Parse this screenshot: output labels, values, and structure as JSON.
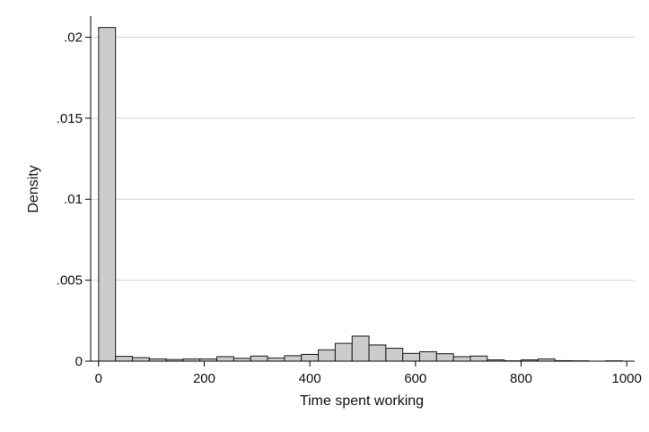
{
  "chart_data": {
    "type": "bar",
    "title": "",
    "xlabel": "Time spent working",
    "ylabel": "Density",
    "xlim": [
      -15,
      1015
    ],
    "ylim": [
      0,
      0.0213
    ],
    "grid": true,
    "bin_width": 32,
    "x_ticks": [
      {
        "value": 0,
        "label": "0"
      },
      {
        "value": 200,
        "label": "200"
      },
      {
        "value": 400,
        "label": "400"
      },
      {
        "value": 600,
        "label": "600"
      },
      {
        "value": 800,
        "label": "800"
      },
      {
        "value": 1000,
        "label": "1000"
      }
    ],
    "y_ticks": [
      {
        "value": 0,
        "label": "0"
      },
      {
        "value": 0.005,
        "label": ".005"
      },
      {
        "value": 0.01,
        "label": ".01"
      },
      {
        "value": 0.015,
        "label": ".015"
      },
      {
        "value": 0.02,
        "label": ".02"
      }
    ],
    "bins": [
      {
        "x": 0,
        "value": 0.0206
      },
      {
        "x": 32,
        "value": 0.0003
      },
      {
        "x": 64,
        "value": 0.00022
      },
      {
        "x": 96,
        "value": 0.00014
      },
      {
        "x": 128,
        "value": 0.0001
      },
      {
        "x": 160,
        "value": 0.00014
      },
      {
        "x": 192,
        "value": 0.00014
      },
      {
        "x": 224,
        "value": 0.00028
      },
      {
        "x": 256,
        "value": 0.00018
      },
      {
        "x": 288,
        "value": 0.00032
      },
      {
        "x": 320,
        "value": 0.0002
      },
      {
        "x": 352,
        "value": 0.00034
      },
      {
        "x": 384,
        "value": 0.00042
      },
      {
        "x": 416,
        "value": 0.0007
      },
      {
        "x": 448,
        "value": 0.0011
      },
      {
        "x": 480,
        "value": 0.00155
      },
      {
        "x": 512,
        "value": 0.001
      },
      {
        "x": 544,
        "value": 0.0008
      },
      {
        "x": 576,
        "value": 0.00048
      },
      {
        "x": 608,
        "value": 0.00058
      },
      {
        "x": 640,
        "value": 0.00046
      },
      {
        "x": 672,
        "value": 0.00028
      },
      {
        "x": 704,
        "value": 0.00032
      },
      {
        "x": 736,
        "value": 8e-05
      },
      {
        "x": 768,
        "value": 2e-05
      },
      {
        "x": 800,
        "value": 8e-05
      },
      {
        "x": 832,
        "value": 0.00014
      },
      {
        "x": 864,
        "value": 3e-05
      },
      {
        "x": 896,
        "value": 2e-05
      },
      {
        "x": 928,
        "value": 0.0
      },
      {
        "x": 960,
        "value": 2e-05
      }
    ],
    "colors": {
      "bar_fill": "#cccccc",
      "bar_stroke": "#1a1a1a",
      "grid": "#d4d4d4",
      "axis": "#000000"
    }
  }
}
